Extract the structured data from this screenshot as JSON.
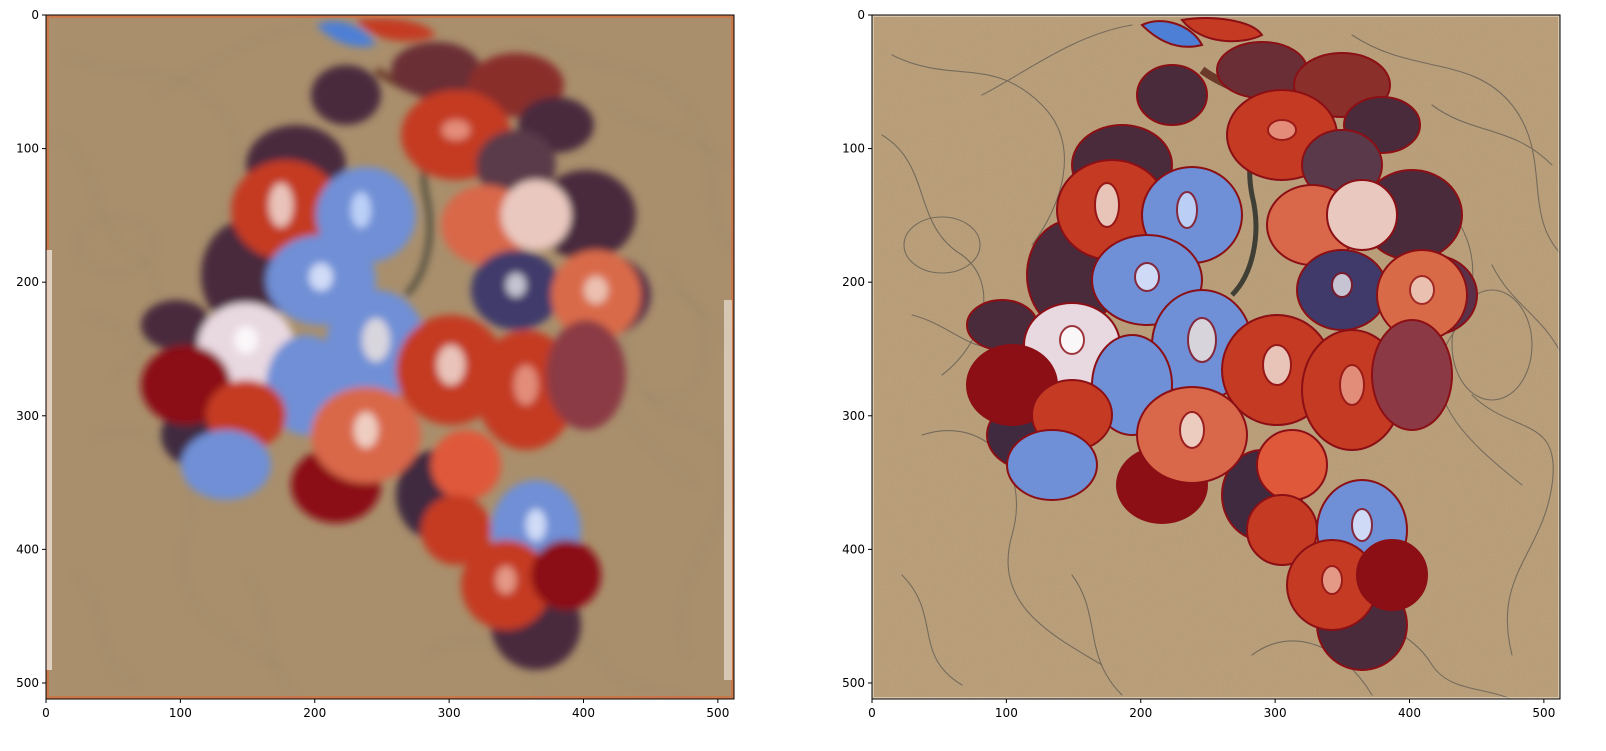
{
  "figure": {
    "panels": [
      {
        "id": "left",
        "description_hint": "blurred painting",
        "x_ticks": [
          "0",
          "100",
          "200",
          "300",
          "400",
          "500"
        ],
        "y_ticks": [
          "0",
          "100",
          "200",
          "300",
          "400",
          "500"
        ],
        "xlim": [
          0,
          512
        ],
        "ylim": [
          512,
          0
        ]
      },
      {
        "id": "right",
        "description_hint": "sharp painting",
        "x_ticks": [
          "0",
          "100",
          "200",
          "300",
          "400",
          "500"
        ],
        "y_ticks": [
          "0",
          "100",
          "200",
          "300",
          "400",
          "500"
        ],
        "xlim": [
          0,
          512
        ],
        "ylim": [
          512,
          0
        ]
      }
    ],
    "colors": {
      "canvas": "#a98f6c",
      "canvas_sharp": "#b89b73",
      "grape_red": "#c43a23",
      "grape_dark": "#4a2b3c",
      "grape_blue": "#6f8fd6",
      "grape_highlight": "#f2e6de",
      "outline": "#8b0f15",
      "pencil": "#5f5a52",
      "border_glow": "#d86c3c"
    }
  }
}
